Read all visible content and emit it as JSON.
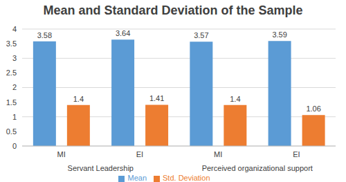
{
  "chart_data": {
    "type": "bar",
    "title": "Mean and Standard Deviation of the Sample",
    "categories": [
      "MI",
      "EI",
      "MI",
      "EI"
    ],
    "groups": [
      "Servant Leadership",
      "Servant Leadership",
      "Perceived organizational support",
      "Perceived organizational support"
    ],
    "series": [
      {
        "name": "Mean",
        "color": "#5b9bd5",
        "values": [
          3.58,
          3.64,
          3.57,
          3.59
        ]
      },
      {
        "name": "Std. Deviation",
        "color": "#ed7d31",
        "values": [
          1.4,
          1.41,
          1.4,
          1.06
        ]
      }
    ],
    "ylim": [
      0,
      4
    ],
    "yticks": [
      0,
      0.5,
      1,
      1.5,
      2,
      2.5,
      3,
      3.5,
      4
    ],
    "grid": true,
    "legend": "bottom",
    "data_labels": true
  }
}
